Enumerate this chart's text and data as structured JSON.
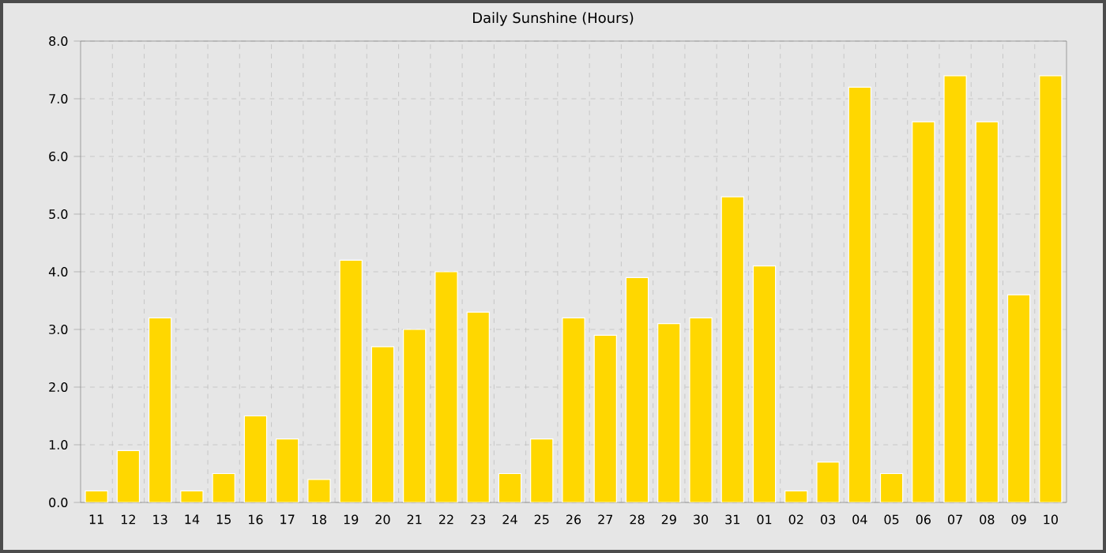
{
  "chart_data": {
    "type": "bar",
    "title": "Daily Sunshine (Hours)",
    "categories": [
      "11",
      "12",
      "13",
      "14",
      "15",
      "16",
      "17",
      "18",
      "19",
      "20",
      "21",
      "22",
      "23",
      "24",
      "25",
      "26",
      "27",
      "28",
      "29",
      "30",
      "31",
      "01",
      "02",
      "03",
      "04",
      "05",
      "06",
      "07",
      "08",
      "09",
      "10"
    ],
    "values": [
      0.2,
      0.9,
      3.2,
      0.2,
      0.5,
      1.5,
      1.1,
      0.4,
      4.2,
      2.7,
      3.0,
      4.0,
      3.3,
      0.5,
      1.1,
      3.2,
      2.9,
      3.9,
      3.1,
      3.2,
      5.3,
      4.1,
      0.2,
      0.7,
      7.2,
      0.5,
      6.6,
      7.4,
      6.6,
      3.6,
      7.4
    ],
    "color": "#ffd700",
    "ylim": [
      0,
      8
    ],
    "yticks": [
      {
        "value": 0,
        "label": "0.0"
      },
      {
        "value": 1,
        "label": "1.0"
      },
      {
        "value": 2,
        "label": "2.0"
      },
      {
        "value": 3,
        "label": "3.0"
      },
      {
        "value": 4,
        "label": "4.0"
      },
      {
        "value": 5,
        "label": "5.0"
      },
      {
        "value": 6,
        "label": "6.0"
      },
      {
        "value": 7,
        "label": "7.0"
      },
      {
        "value": 8,
        "label": "8.0"
      }
    ],
    "grid": true
  }
}
